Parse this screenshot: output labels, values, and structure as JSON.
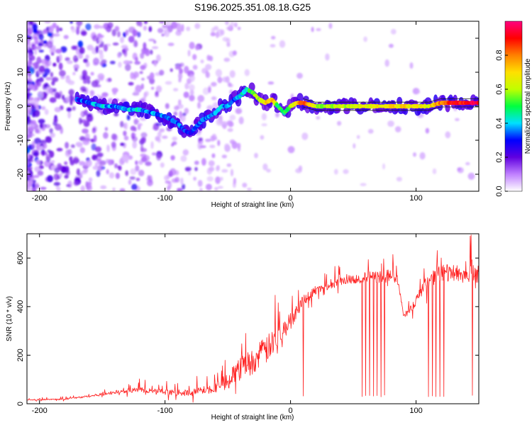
{
  "figure_title": "S196.2025.351.08.18.G25",
  "chart_data": [
    {
      "type": "heatmap",
      "title": "S196.2025.351.08.18.G25",
      "xlabel": "Height of straight line (km)",
      "ylabel": "Frequency (Hz)",
      "xlim": [
        -210,
        150
      ],
      "ylim": [
        -25,
        25
      ],
      "x_ticks": [
        -200,
        -100,
        0,
        100
      ],
      "y_ticks": [
        -20,
        -10,
        0,
        10,
        20
      ],
      "colorbar": {
        "label": "Normalized spectral amplitude",
        "range": [
          0,
          1
        ],
        "ticks": [
          0.0,
          0.2,
          0.4,
          0.6,
          0.8
        ],
        "tick_labels": [
          "0.0",
          "0.2",
          "0.4",
          "0.6",
          "0.8"
        ],
        "colors": [
          "#ffffff",
          "#c080ff",
          "#6000e0",
          "#0000ff",
          "#00e0ff",
          "#00ff40",
          "#c0ff00",
          "#ffe000",
          "#ff8000",
          "#ff0000",
          "#ff0080"
        ]
      },
      "ridge": {
        "x": [
          -170,
          -160,
          -150,
          -140,
          -130,
          -120,
          -110,
          -100,
          -95,
          -90,
          -85,
          -80,
          -75,
          -70,
          -65,
          -60,
          -55,
          -50,
          -45,
          -40,
          -35,
          -30,
          -25,
          -20,
          -15,
          -10,
          -5,
          0,
          5,
          10,
          20,
          40,
          60,
          80,
          100,
          110,
          120,
          130,
          140,
          150
        ],
        "y": [
          2,
          1,
          0,
          0,
          -1,
          -1,
          -2,
          -3,
          -4,
          -5,
          -7,
          -8,
          -6,
          -4,
          -3,
          -2,
          0,
          0,
          2,
          3,
          5,
          4,
          2,
          1,
          2,
          0,
          -2,
          0,
          1,
          1,
          0,
          0,
          0,
          0,
          0,
          0,
          1,
          1,
          1,
          1
        ],
        "amplitude": [
          0.3,
          0.35,
          0.4,
          0.35,
          0.4,
          0.4,
          0.35,
          0.35,
          0.3,
          0.35,
          0.3,
          0.3,
          0.3,
          0.35,
          0.35,
          0.4,
          0.4,
          0.35,
          0.35,
          0.4,
          0.45,
          0.55,
          0.6,
          0.7,
          0.75,
          0.5,
          0.5,
          0.55,
          0.7,
          0.85,
          0.6,
          0.6,
          0.65,
          0.7,
          0.7,
          0.65,
          0.8,
          0.9,
          0.9,
          0.95
        ]
      }
    },
    {
      "type": "line",
      "xlabel": "Height of straight line (km)",
      "ylabel": "SNR (10 * v/v)",
      "xlim": [
        -210,
        150
      ],
      "ylim": [
        0,
        700
      ],
      "x_ticks": [
        -200,
        -100,
        0,
        100
      ],
      "y_ticks": [
        0,
        200,
        400,
        600
      ],
      "series": [
        {
          "name": "SNR",
          "color": "#ff2020",
          "envelope_x": [
            -210,
            -180,
            -160,
            -140,
            -120,
            -100,
            -80,
            -60,
            -50,
            -40,
            -30,
            -20,
            -10,
            0,
            10,
            20,
            30,
            40,
            50,
            60,
            70,
            80,
            85,
            90,
            95,
            100,
            110,
            120,
            130,
            140,
            150
          ],
          "envelope_y": [
            15,
            18,
            30,
            45,
            55,
            45,
            40,
            60,
            90,
            130,
            160,
            200,
            260,
            330,
            420,
            460,
            480,
            500,
            510,
            510,
            515,
            520,
            510,
            360,
            380,
            420,
            500,
            520,
            530,
            520,
            520
          ],
          "spike_amplitude_y": [
            5,
            10,
            15,
            25,
            35,
            35,
            45,
            70,
            100,
            160,
            180,
            200,
            150,
            120,
            80,
            60,
            50,
            60,
            70,
            80,
            90,
            90,
            60,
            40,
            50,
            70,
            100,
            120,
            130,
            120,
            140
          ],
          "dropouts_x": [
            10,
            57,
            60,
            63,
            66,
            69,
            72,
            75,
            110,
            113,
            116,
            119,
            122,
            145
          ]
        }
      ]
    }
  ]
}
